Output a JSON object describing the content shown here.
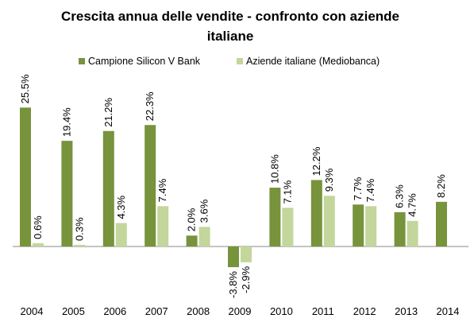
{
  "chart_data": {
    "type": "bar",
    "title": "Crescita annua delle vendite - confronto con aziende italiane",
    "categories": [
      "2004",
      "2005",
      "2006",
      "2007",
      "2008",
      "2009",
      "2010",
      "2011",
      "2012",
      "2013",
      "2014"
    ],
    "series": [
      {
        "name": "Campione Silicon V Bank",
        "color": "#77933c",
        "values": [
          25.5,
          19.4,
          21.2,
          22.3,
          2.0,
          -3.8,
          10.8,
          12.2,
          7.7,
          6.3,
          8.2
        ],
        "labels": [
          "25.5%",
          "19.4%",
          "21.2%",
          "22.3%",
          "2.0%",
          "-3.8%",
          "10.8%",
          "12.2%",
          "7.7%",
          "6.3%",
          "8.2%"
        ]
      },
      {
        "name": "Aziende italiane (Mediobanca)",
        "color": "#c3d69b",
        "values": [
          0.6,
          0.3,
          4.3,
          7.4,
          3.6,
          -2.9,
          7.1,
          9.3,
          7.4,
          4.7,
          null
        ],
        "labels": [
          "0.6%",
          "0.3%",
          "4.3%",
          "7.4%",
          "3.6%",
          "-2.9%",
          "7.1%",
          "9.3%",
          "7.4%",
          "4.7%",
          ""
        ]
      }
    ],
    "xlabel": "",
    "ylabel": "",
    "grid": false,
    "legend_position": "top"
  }
}
